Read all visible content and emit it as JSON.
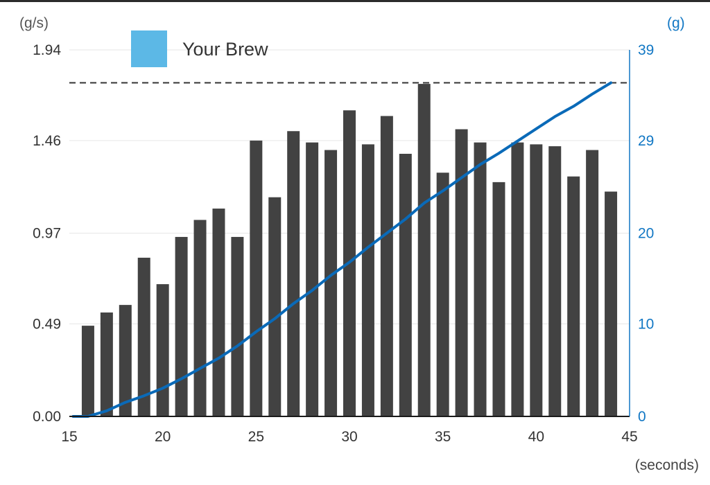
{
  "chart_data": {
    "type": "bar+line",
    "x_unit": "(seconds)",
    "left_unit": "(g/s)",
    "right_unit": "(g)",
    "xlim": [
      15,
      45
    ],
    "x_ticks": [
      "15",
      "20",
      "25",
      "30",
      "35",
      "40",
      "45"
    ],
    "left_ylim": [
      0,
      1.94
    ],
    "left_ticks": [
      "0.00",
      "0.49",
      "0.97",
      "1.46",
      "1.94"
    ],
    "right_ylim": [
      0,
      39
    ],
    "right_ticks": [
      "0",
      "10",
      "20",
      "29",
      "39"
    ],
    "target_line_y_right": 35.5,
    "legend": {
      "label": "Your Brew",
      "color": "#5cb8e6",
      "position": "top-left"
    },
    "colors": {
      "bars": "#424242",
      "line": "#0a6ab8",
      "grid": "#e6e6e6",
      "axis": "#1a1a1a",
      "right_axis": "#1177c4"
    },
    "series": [
      {
        "kind": "bar",
        "axis": "left",
        "x": [
          16,
          17,
          18,
          19,
          20,
          21,
          22,
          23,
          24,
          25,
          26,
          27,
          28,
          29,
          30,
          31,
          32,
          33,
          34,
          35,
          36,
          37,
          38,
          39,
          40,
          41,
          42,
          43,
          44
        ],
        "values": [
          0.48,
          0.55,
          0.59,
          0.84,
          0.7,
          0.95,
          1.04,
          1.1,
          0.95,
          1.46,
          1.16,
          1.51,
          1.45,
          1.41,
          1.62,
          1.44,
          1.59,
          1.39,
          1.76,
          1.29,
          1.52,
          1.45,
          1.24,
          1.45,
          1.44,
          1.43,
          1.27,
          1.41,
          1.19
        ]
      },
      {
        "kind": "line",
        "axis": "right",
        "x": [
          15.2,
          16,
          17,
          18,
          19,
          20,
          21,
          22,
          23,
          24,
          25,
          26,
          27,
          28,
          29,
          30,
          31,
          32,
          33,
          34,
          35,
          36,
          37,
          38,
          39,
          40,
          41,
          42,
          43,
          44
        ],
        "values": [
          0,
          0,
          0.6,
          1.5,
          2.2,
          3.0,
          4.0,
          5.1,
          6.2,
          7.5,
          9.0,
          10.4,
          12.0,
          13.4,
          15.0,
          16.4,
          18.0,
          19.5,
          21.0,
          22.7,
          24.0,
          25.4,
          26.8,
          28.0,
          29.3,
          30.6,
          31.9,
          33.0,
          34.3,
          35.5
        ]
      }
    ]
  }
}
